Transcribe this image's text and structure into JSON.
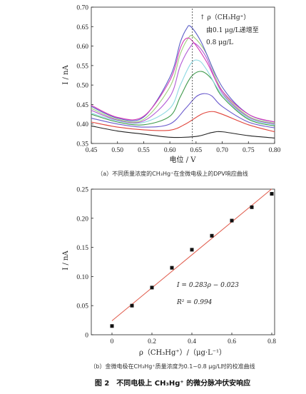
{
  "chart_data": [
    {
      "type": "line",
      "title": "",
      "xlabel": "电位 / V",
      "ylabel": "I / nA",
      "xlim": [
        0.45,
        0.8
      ],
      "ylim": [
        0.35,
        0.7
      ],
      "x_ticks": [
        "0.45",
        "0.50",
        "0.55",
        "0.60",
        "0.65",
        "0.70",
        "0.75",
        "0.80"
      ],
      "y_ticks": [
        "0.35",
        "0.40",
        "0.45",
        "0.50",
        "0.55",
        "0.60",
        "0.65",
        "0.70"
      ],
      "caption": "（a）不同质量浓度的CH₃Hg⁺在金微电极上的DPV响应曲线",
      "annotation_lines": [
        "↑ ρ（CH₃Hg⁺）",
        "由0.1 μg/L递增至",
        "0.8 μg/L"
      ],
      "dashed_x": 0.643,
      "series": [
        {
          "color": "#222222",
          "x": [
            0.45,
            0.5,
            0.55,
            0.6,
            0.65,
            0.68,
            0.7,
            0.75,
            0.8
          ],
          "y": [
            0.395,
            0.382,
            0.374,
            0.366,
            0.368,
            0.378,
            0.38,
            0.37,
            0.364
          ]
        },
        {
          "color": "#e0433a",
          "x": [
            0.45,
            0.5,
            0.55,
            0.6,
            0.63,
            0.66,
            0.68,
            0.7,
            0.75,
            0.8
          ],
          "y": [
            0.405,
            0.392,
            0.385,
            0.384,
            0.4,
            0.425,
            0.432,
            0.425,
            0.398,
            0.38
          ]
        },
        {
          "color": "#6a5acd",
          "x": [
            0.45,
            0.5,
            0.55,
            0.6,
            0.63,
            0.65,
            0.665,
            0.68,
            0.7,
            0.75,
            0.8
          ],
          "y": [
            0.415,
            0.4,
            0.392,
            0.4,
            0.44,
            0.47,
            0.478,
            0.472,
            0.445,
            0.405,
            0.39
          ]
        },
        {
          "color": "#3f9a4c",
          "x": [
            0.45,
            0.5,
            0.55,
            0.6,
            0.62,
            0.64,
            0.66,
            0.68,
            0.7,
            0.75,
            0.8
          ],
          "y": [
            0.425,
            0.405,
            0.398,
            0.42,
            0.47,
            0.52,
            0.535,
            0.515,
            0.47,
            0.412,
            0.395
          ]
        },
        {
          "color": "#8fd9e3",
          "x": [
            0.45,
            0.5,
            0.55,
            0.6,
            0.62,
            0.64,
            0.655,
            0.67,
            0.7,
            0.75,
            0.8
          ],
          "y": [
            0.428,
            0.408,
            0.404,
            0.44,
            0.5,
            0.555,
            0.563,
            0.54,
            0.475,
            0.415,
            0.398
          ]
        },
        {
          "color": "#b25ad6",
          "x": [
            0.45,
            0.5,
            0.55,
            0.6,
            0.62,
            0.64,
            0.65,
            0.67,
            0.7,
            0.75,
            0.8
          ],
          "y": [
            0.435,
            0.41,
            0.408,
            0.47,
            0.55,
            0.6,
            0.605,
            0.57,
            0.48,
            0.418,
            0.4
          ]
        },
        {
          "color": "#9fd07a",
          "x": [
            0.45,
            0.5,
            0.55,
            0.6,
            0.62,
            0.635,
            0.645,
            0.67,
            0.7,
            0.75,
            0.8
          ],
          "y": [
            0.44,
            0.412,
            0.412,
            0.495,
            0.58,
            0.62,
            0.624,
            0.58,
            0.485,
            0.42,
            0.402
          ]
        },
        {
          "color": "#5b5fc7",
          "x": [
            0.45,
            0.5,
            0.55,
            0.6,
            0.62,
            0.632,
            0.64,
            0.66,
            0.7,
            0.75,
            0.8
          ],
          "y": [
            0.445,
            0.415,
            0.418,
            0.52,
            0.61,
            0.645,
            0.65,
            0.61,
            0.495,
            0.425,
            0.405
          ]
        },
        {
          "color": "#d43bb8",
          "x": [
            0.45,
            0.5,
            0.55,
            0.6,
            0.62,
            0.632,
            0.645,
            0.67,
            0.7,
            0.75,
            0.8
          ],
          "y": [
            0.448,
            0.417,
            0.42,
            0.512,
            0.595,
            0.62,
            0.61,
            0.56,
            0.485,
            0.425,
            0.405
          ]
        }
      ]
    },
    {
      "type": "scatter",
      "title": "",
      "xlabel": "ρ（CH₃Hg⁺）/（μg·L⁻¹）",
      "ylabel": "I / nA",
      "xlim": [
        0,
        0.8
      ],
      "ylim": [
        0,
        0.25
      ],
      "x_ticks": [
        "0",
        "0.2",
        "0.4",
        "0.6",
        "0.8"
      ],
      "y_ticks": [
        "0",
        "0.05",
        "0.10",
        "0.15",
        "0.20",
        "0.25"
      ],
      "points": {
        "x": [
          0,
          0.1,
          0.2,
          0.3,
          0.4,
          0.5,
          0.6,
          0.7,
          0.8
        ],
        "y": [
          0.015,
          0.05,
          0.081,
          0.115,
          0.146,
          0.17,
          0.196,
          0.219,
          0.242
        ]
      },
      "fit": {
        "slope": 0.283,
        "intercept": -0.023,
        "x_range": [
          0,
          0.8
        ],
        "color": "#e05a4a"
      },
      "equation": "I = 0.283ρ − 0.023",
      "r2": "R² = 0.994",
      "caption": "（b）金微电极在CH₃Hg⁺质量浓度为0.1~0.8 μg/L时的校准曲线"
    }
  ],
  "figure_caption": "图 2　不同电极上 CH₃Hg⁺ 的微分脉冲伏安响应"
}
